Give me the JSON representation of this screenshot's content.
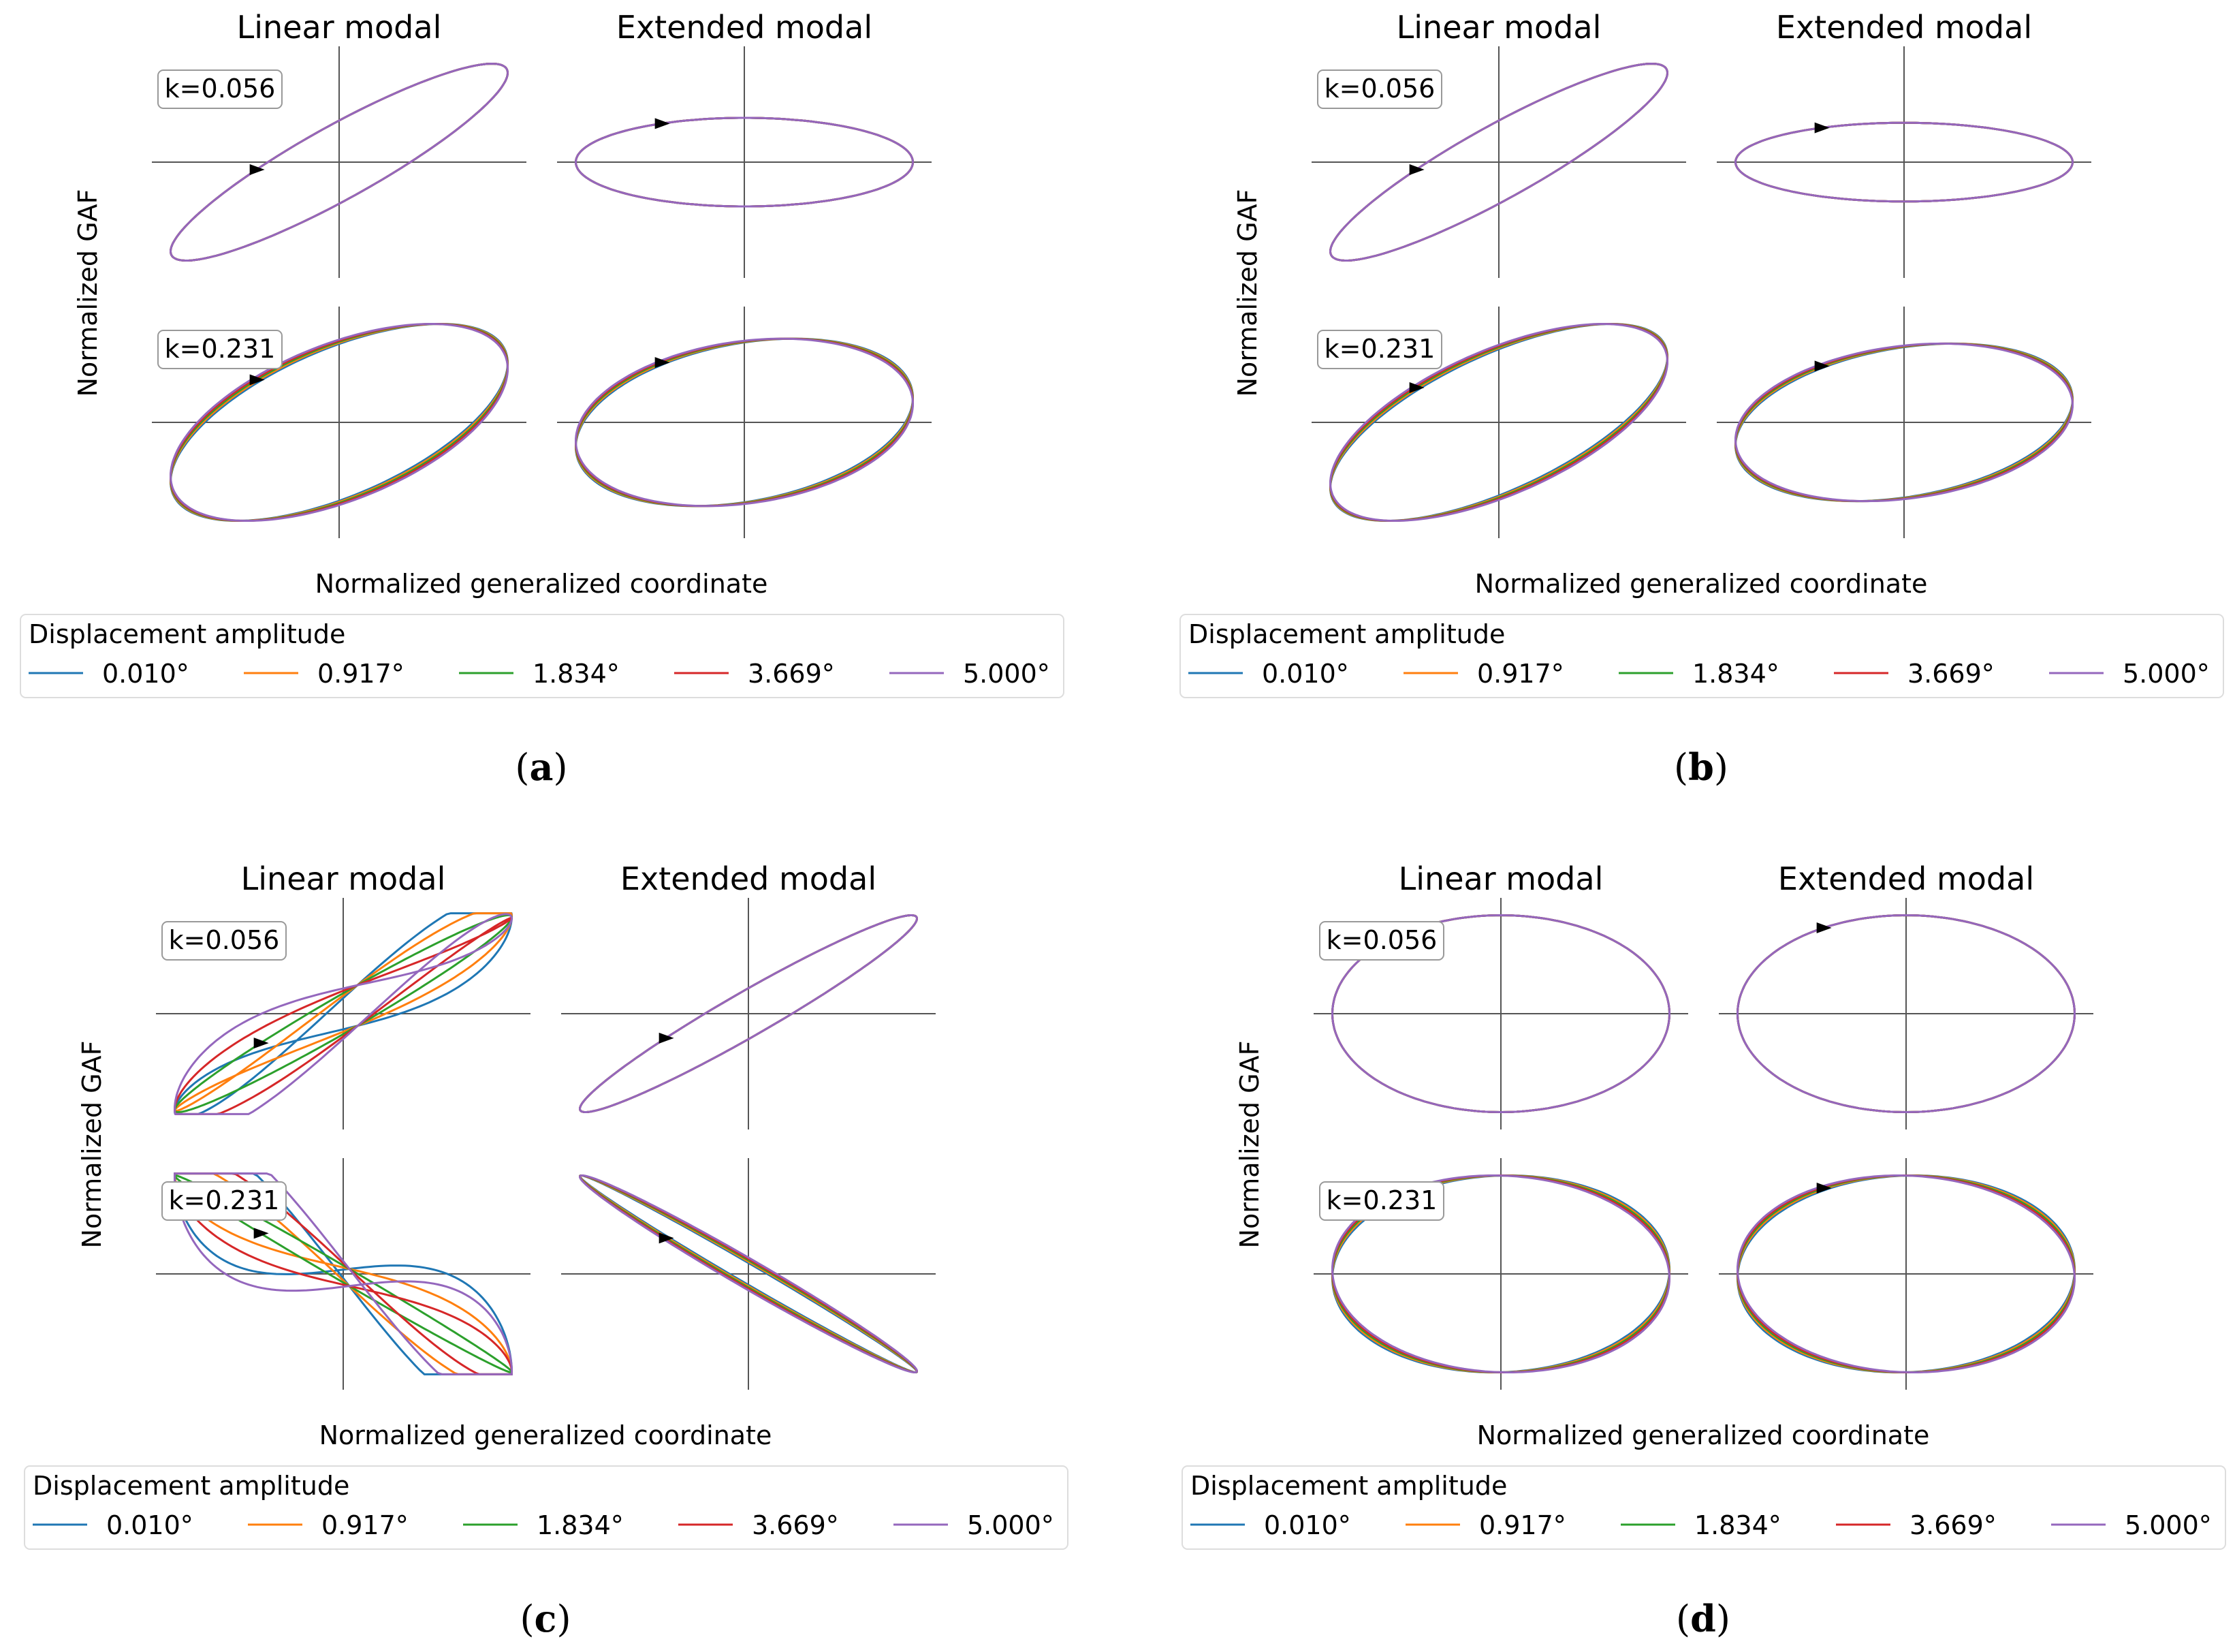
{
  "figure": {
    "col_titles": [
      "Linear modal",
      "Extended modal"
    ],
    "ylabel": "Normalized GAF",
    "xlabel": "Normalized generalized coordinate",
    "legend_title": "Displacement amplitude"
  },
  "colors": {
    "series": [
      "#1f77b4",
      "#ff7f0e",
      "#2ca02c",
      "#d62728",
      "#9467bd"
    ],
    "axis_line": "#555555"
  },
  "chart_data": [
    {
      "type": "line",
      "panel": "(a)",
      "caption_letter": "a",
      "title_left": "Linear modal",
      "title_right": "Extended modal",
      "xlabel": "Normalized generalized coordinate",
      "ylabel": "Normalized GAF",
      "legend_title": "Displacement amplitude",
      "series": [
        {
          "name": "0.010°",
          "color": "#1f77b4"
        },
        {
          "name": "0.917°",
          "color": "#ff7f0e"
        },
        {
          "name": "1.834°",
          "color": "#2ca02c"
        },
        {
          "name": "3.669°",
          "color": "#d62728"
        },
        {
          "name": "5.000°",
          "color": "#9467bd"
        }
      ],
      "xlim": [
        -1,
        1
      ],
      "ylim": [
        -1,
        1
      ],
      "subplots": [
        {
          "k_label": "k=0.056",
          "model": "Linear modal",
          "curve": {
            "ax": 1.0,
            "ay": 1.0,
            "phase_deg": 25,
            "spread": 0.0
          }
        },
        {
          "k_label": "",
          "model": "Extended modal",
          "curve": {
            "ax": 1.0,
            "ay": 0.45,
            "phase_deg": 90,
            "spread": 0.0
          }
        },
        {
          "k_label": "k=0.231",
          "model": "Linear modal",
          "curve": {
            "ax": 1.0,
            "ay": 1.0,
            "phase_deg": 55,
            "spread": 0.02
          }
        },
        {
          "k_label": "",
          "model": "Extended modal",
          "curve": {
            "ax": 1.0,
            "ay": 0.85,
            "phase_deg": 75,
            "spread": 0.015
          }
        }
      ]
    },
    {
      "type": "line",
      "panel": "(b)",
      "caption_letter": "b",
      "title_left": "Linear modal",
      "title_right": "Extended modal",
      "xlabel": "Normalized generalized coordinate",
      "ylabel": "Normalized GAF",
      "legend_title": "Displacement amplitude",
      "series": [
        {
          "name": "0.010°",
          "color": "#1f77b4"
        },
        {
          "name": "0.917°",
          "color": "#ff7f0e"
        },
        {
          "name": "1.834°",
          "color": "#2ca02c"
        },
        {
          "name": "3.669°",
          "color": "#d62728"
        },
        {
          "name": "5.000°",
          "color": "#9467bd"
        }
      ],
      "xlim": [
        -1,
        1
      ],
      "ylim": [
        -1,
        1
      ],
      "subplots": [
        {
          "k_label": "k=0.056",
          "model": "Linear modal",
          "curve": {
            "ax": 1.0,
            "ay": 1.0,
            "phase_deg": 25,
            "spread": 0.0
          }
        },
        {
          "k_label": "",
          "model": "Extended modal",
          "curve": {
            "ax": 1.0,
            "ay": 0.4,
            "phase_deg": 90,
            "spread": 0.0
          }
        },
        {
          "k_label": "k=0.231",
          "model": "Linear modal",
          "curve": {
            "ax": 1.0,
            "ay": 1.0,
            "phase_deg": 50,
            "spread": 0.02
          }
        },
        {
          "k_label": "",
          "model": "Extended modal",
          "curve": {
            "ax": 1.0,
            "ay": 0.8,
            "phase_deg": 75,
            "spread": 0.015
          }
        }
      ]
    },
    {
      "type": "line",
      "panel": "(c)",
      "caption_letter": "c",
      "title_left": "Linear modal",
      "title_right": "Extended modal",
      "xlabel": "Normalized generalized coordinate",
      "ylabel": "Normalized GAF",
      "legend_title": "Displacement amplitude",
      "series": [
        {
          "name": "0.010°",
          "color": "#1f77b4"
        },
        {
          "name": "0.917°",
          "color": "#ff7f0e"
        },
        {
          "name": "1.834°",
          "color": "#2ca02c"
        },
        {
          "name": "3.669°",
          "color": "#d62728"
        },
        {
          "name": "5.000°",
          "color": "#9467bd"
        }
      ],
      "xlim": [
        -1,
        1
      ],
      "ylim": [
        -1,
        1
      ],
      "subplots": [
        {
          "k_label": "k=0.056",
          "model": "Linear modal",
          "curve": {
            "ax": 1.0,
            "ay": 1.0,
            "phase_deg": 12,
            "spread": 0.12,
            "shape": "s"
          }
        },
        {
          "k_label": "",
          "model": "Extended modal",
          "curve": {
            "ax": 1.0,
            "ay": 1.0,
            "phase_deg": 15,
            "spread": 0.0
          }
        },
        {
          "k_label": "k=0.231",
          "model": "Linear modal",
          "curve": {
            "ax": 1.0,
            "ay": -1.0,
            "phase_deg": 5,
            "spread": 0.25,
            "shape": "s"
          }
        },
        {
          "k_label": "",
          "model": "Extended modal",
          "curve": {
            "ax": 1.0,
            "ay": -1.0,
            "phase_deg": 8,
            "spread": 0.1
          }
        }
      ]
    },
    {
      "type": "line",
      "panel": "(d)",
      "caption_letter": "d",
      "title_left": "Linear modal",
      "title_right": "Extended modal",
      "xlabel": "Normalized generalized coordinate",
      "ylabel": "Normalized GAF",
      "legend_title": "Displacement amplitude",
      "series": [
        {
          "name": "0.010°",
          "color": "#1f77b4"
        },
        {
          "name": "0.917°",
          "color": "#ff7f0e"
        },
        {
          "name": "1.834°",
          "color": "#2ca02c"
        },
        {
          "name": "3.669°",
          "color": "#d62728"
        },
        {
          "name": "5.000°",
          "color": "#9467bd"
        }
      ],
      "xlim": [
        -1,
        1
      ],
      "ylim": [
        -1,
        1
      ],
      "subplots": [
        {
          "k_label": "k=0.056",
          "model": "Linear modal",
          "curve": {
            "ax": 1.0,
            "ay": 1.0,
            "phase_deg": 90,
            "spread": 0.0
          }
        },
        {
          "k_label": "",
          "model": "Extended modal",
          "curve": {
            "ax": 1.0,
            "ay": 1.0,
            "phase_deg": 90,
            "spread": 0.0
          }
        },
        {
          "k_label": "k=0.231",
          "model": "Linear modal",
          "curve": {
            "ax": 1.0,
            "ay": 1.0,
            "phase_deg": 90,
            "spread": 0.015
          }
        },
        {
          "k_label": "",
          "model": "Extended modal",
          "curve": {
            "ax": 1.0,
            "ay": 1.0,
            "phase_deg": 90,
            "spread": 0.015
          }
        }
      ]
    }
  ]
}
